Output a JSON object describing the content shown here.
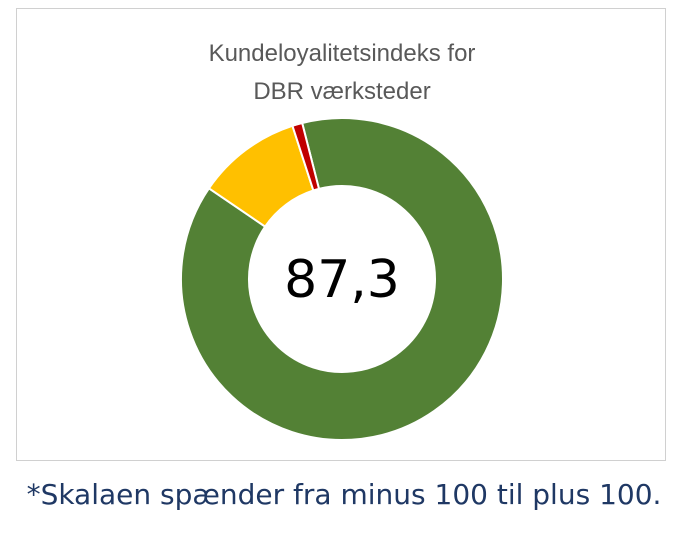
{
  "chart_data": {
    "type": "pie",
    "variant": "donut",
    "title_lines": [
      "Kundeloyalitetsindeks for",
      "DBR værksteder"
    ],
    "center_label": "87,3",
    "slices": [
      {
        "value": 88.5,
        "color": "#538135"
      },
      {
        "value": 10.5,
        "color": "#ffc000"
      },
      {
        "value": 1.0,
        "color": "#c00000"
      }
    ],
    "legend": "none"
  },
  "footnote": "*Skalaen spænder fra minus 100 til plus 100."
}
